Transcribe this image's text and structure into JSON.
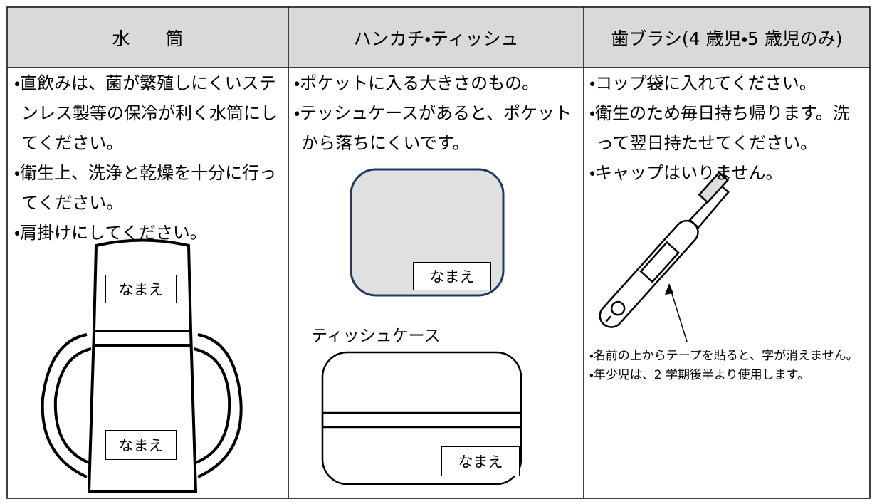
{
  "table": {
    "headers": [
      "水　　筒",
      "ハンカチ・ティッシュ",
      "歯ブラシ(4 歳児・5 歳児のみ)"
    ],
    "columns": [
      {
        "items": [
          "・直飲みは、菌が繁殖しにくいステンレス製等の保冷が利く水筒にしてください。",
          "・衛生上、洗浄と乾燥を十分に行ってください。",
          "・肩掛けにしてください。"
        ],
        "labels": [
          "なまえ",
          "なまえ"
        ]
      },
      {
        "items": [
          "・ポケットに入る大きさのもの。",
          "・テッシュケースがあると、ポケットから落ちにくいです。"
        ],
        "labels": [
          "なまえ",
          "なまえ"
        ],
        "caption": "ティッシュケース"
      },
      {
        "items": [
          "・コップ袋に入れてください。",
          "・衛生のため毎日持ち帰ります。洗って翌日持たせてください。",
          "・キャップはいりません。"
        ],
        "notes": [
          "・名前の上からテープを貼ると、字が消えません。",
          "・年少児は、2 学期後半より使用します。"
        ]
      }
    ]
  }
}
